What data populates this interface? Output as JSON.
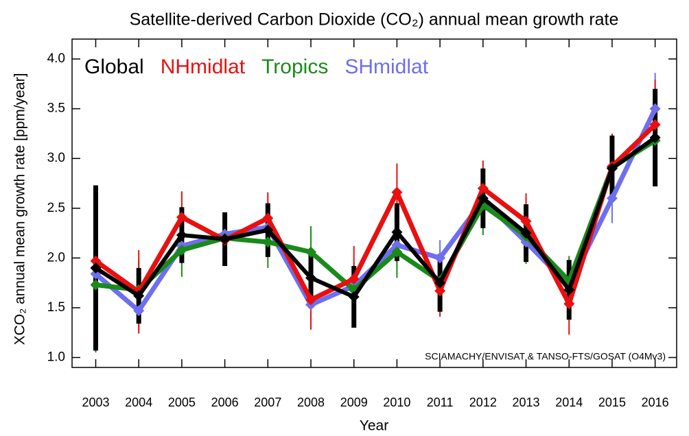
{
  "chart_data": {
    "type": "line",
    "title": "Satellite-derived Carbon Dioxide (CO₂) annual mean growth rate",
    "x_label": "Year",
    "y_label": "XCO₂ annual mean growth rate [ppm/year]",
    "annotation": "SCIAMACHY/ENVISAT & TANSO-FTS/GOSAT (O4Mv3)",
    "x": [
      2003,
      2004,
      2005,
      2006,
      2007,
      2008,
      2009,
      2010,
      2011,
      2012,
      2013,
      2014,
      2015,
      2016
    ],
    "xlim": [
      2002.45,
      2016.5
    ],
    "xticks": [
      2003,
      2004,
      2005,
      2006,
      2007,
      2008,
      2009,
      2010,
      2011,
      2012,
      2013,
      2014,
      2015,
      2016
    ],
    "ylim": [
      0.9,
      4.2
    ],
    "yticks": [
      {
        "value": 1,
        "label": "1.0"
      },
      1.5,
      {
        "value": 2,
        "label": "2.0"
      },
      2.5,
      {
        "value": 3,
        "label": "3.0"
      },
      3.5,
      {
        "value": 4,
        "label": "4.0"
      }
    ],
    "grid": false,
    "legend": "upper left",
    "series": [
      {
        "name": "SHmidlat",
        "color": "#6e6ef0",
        "values": [
          1.84,
          1.47,
          2.12,
          2.24,
          2.31,
          1.53,
          1.72,
          2.13,
          2.0,
          2.58,
          2.16,
          1.72,
          2.6,
          3.5
        ],
        "errors": [
          0.25,
          0.2,
          0.2,
          0.2,
          0.2,
          0.2,
          0.2,
          0.2,
          0.18,
          0.2,
          0.2,
          0.2,
          0.25,
          0.36
        ]
      },
      {
        "name": "Tropics",
        "color": "#1a8a1a",
        "values": [
          1.73,
          1.68,
          2.08,
          2.2,
          2.16,
          2.06,
          1.68,
          2.06,
          1.77,
          2.53,
          2.22,
          1.77,
          2.91,
          3.18
        ],
        "errors": [
          0.68,
          0.3,
          0.27,
          0.25,
          0.26,
          0.26,
          0.27,
          0.26,
          0.27,
          0.3,
          0.28,
          0.25,
          0.33,
          0.45
        ]
      },
      {
        "name": "NHmidlat",
        "color": "#e81010",
        "values": [
          1.97,
          1.66,
          2.41,
          2.18,
          2.4,
          1.58,
          1.79,
          2.66,
          1.67,
          2.7,
          2.37,
          1.54,
          2.92,
          3.34
        ],
        "errors": [
          0.69,
          0.42,
          0.26,
          0.25,
          0.26,
          0.3,
          0.33,
          0.29,
          0.26,
          0.28,
          0.28,
          0.31,
          0.33,
          0.45
        ]
      },
      {
        "name": "Global",
        "color": "#000000",
        "values": [
          1.9,
          1.62,
          2.23,
          2.19,
          2.28,
          1.8,
          1.61,
          2.26,
          1.75,
          2.6,
          2.25,
          1.68,
          2.9,
          3.21
        ],
        "errors": [
          0.83,
          0.28,
          0.28,
          0.27,
          0.27,
          0.24,
          0.31,
          0.29,
          0.29,
          0.3,
          0.29,
          0.3,
          0.33,
          0.49
        ]
      }
    ]
  }
}
